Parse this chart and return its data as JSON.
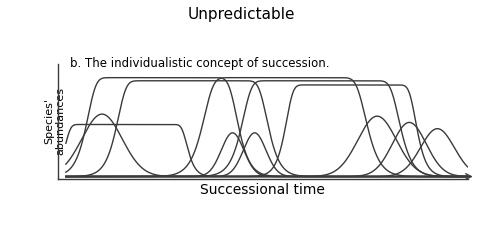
{
  "title": "Unpredictable",
  "subtitle": "b. The individualistic concept of succession.",
  "xlabel": "Successional time",
  "ylabel": "Species'\nabundances",
  "bg_color": "#ffffff",
  "line_color": "#3a3a3a",
  "title_fontsize": 11,
  "subtitle_fontsize": 8.5,
  "xlabel_fontsize": 10,
  "ylabel_fontsize": 8,
  "curves": [
    {
      "mu": 0.09,
      "sigma": 0.05,
      "amp": 0.6,
      "flat": 0.0
    },
    {
      "mu": 0.15,
      "sigma": 0.048,
      "amp": 0.5,
      "flat": 0.01
    },
    {
      "mu": 0.24,
      "sigma": 0.065,
      "amp": 0.95,
      "flat": 0.025
    },
    {
      "mu": 0.315,
      "sigma": 0.065,
      "amp": 0.92,
      "flat": 0.025
    },
    {
      "mu": 0.415,
      "sigma": 0.028,
      "amp": 0.42,
      "flat": 0.0
    },
    {
      "mu": 0.47,
      "sigma": 0.028,
      "amp": 0.42,
      "flat": 0.0
    },
    {
      "mu": 0.545,
      "sigma": 0.072,
      "amp": 0.95,
      "flat": 0.03
    },
    {
      "mu": 0.635,
      "sigma": 0.068,
      "amp": 0.92,
      "flat": 0.025
    },
    {
      "mu": 0.71,
      "sigma": 0.055,
      "amp": 0.88,
      "flat": 0.02
    },
    {
      "mu": 0.775,
      "sigma": 0.048,
      "amp": 0.58,
      "flat": 0.0
    },
    {
      "mu": 0.855,
      "sigma": 0.042,
      "amp": 0.52,
      "flat": 0.0
    },
    {
      "mu": 0.925,
      "sigma": 0.042,
      "amp": 0.46,
      "flat": 0.0
    }
  ]
}
